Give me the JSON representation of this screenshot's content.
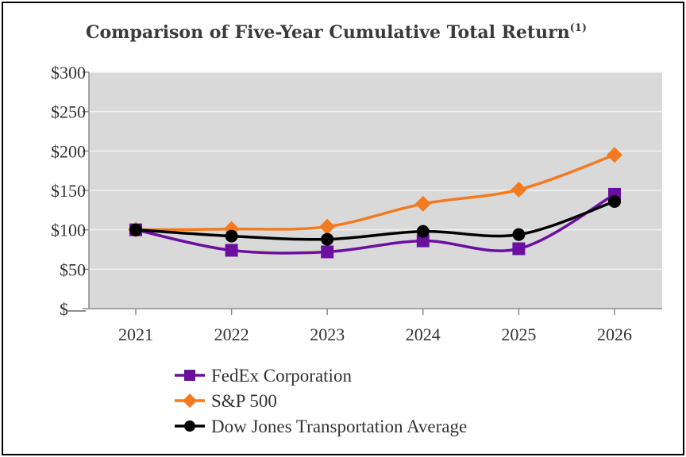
{
  "chart_data": {
    "type": "line",
    "title": "Comparison of Five-Year Cumulative Total Return",
    "title_superscript": "(1)",
    "x": [
      "2021",
      "2022",
      "2023",
      "2024",
      "2025",
      "2026"
    ],
    "ylim": [
      0,
      300
    ],
    "yticks": [
      0,
      50,
      100,
      150,
      200,
      250,
      300
    ],
    "ytick_labels": [
      "$—",
      "$50",
      "$100",
      "$150",
      "$200",
      "$250",
      "$300"
    ],
    "grid": true,
    "legend_position": "bottom",
    "series": [
      {
        "name": "FedEx Corporation",
        "values": [
          100,
          74,
          72,
          86,
          76,
          145
        ],
        "color": "#6b0fa0",
        "marker": "square"
      },
      {
        "name": "S&P 500",
        "values": [
          100,
          101,
          104,
          133,
          151,
          195
        ],
        "color": "#f47a20",
        "marker": "diamond"
      },
      {
        "name": "Dow Jones Transportation Average",
        "values": [
          100,
          92,
          88,
          98,
          94,
          136
        ],
        "color": "#000000",
        "marker": "circle"
      }
    ]
  }
}
